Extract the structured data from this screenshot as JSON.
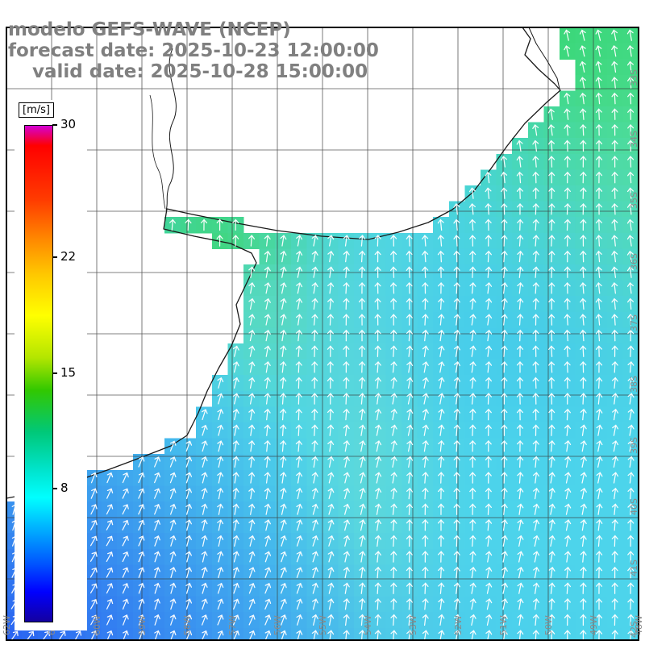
{
  "title": {
    "model": "modelo GEFS-WAVE (NCEP)",
    "forecast_date": "forecast date: 2025-10-23 12:00:00",
    "valid_date": "valid date: 2025-10-28 15:00:00",
    "color": "#808080"
  },
  "colorbar": {
    "unit": "[m/s]",
    "max": 30,
    "min": 0,
    "tick_labels": [
      "30",
      "22",
      "15",
      "8"
    ],
    "tick_values": [
      30,
      22,
      15,
      8
    ],
    "stops": [
      {
        "value": 30,
        "color": "#d400d4"
      },
      {
        "value": 28.8,
        "color": "#ff0000"
      },
      {
        "value": 25.5,
        "color": "#ff3c00"
      },
      {
        "value": 23,
        "color": "#ff8c00"
      },
      {
        "value": 21,
        "color": "#ffc800"
      },
      {
        "value": 18.5,
        "color": "#ffff00"
      },
      {
        "value": 16,
        "color": "#b4e600"
      },
      {
        "value": 14,
        "color": "#32c800"
      },
      {
        "value": 11.5,
        "color": "#00c878"
      },
      {
        "value": 9,
        "color": "#00e6d2"
      },
      {
        "value": 7.5,
        "color": "#00ffff"
      },
      {
        "value": 5.5,
        "color": "#00aaff"
      },
      {
        "value": 3.5,
        "color": "#0055ff"
      },
      {
        "value": 1.8,
        "color": "#0000ff"
      },
      {
        "value": 0,
        "color": "#1400a0"
      }
    ]
  },
  "map": {
    "lon_labels": [
      "62W",
      "61W",
      "60W",
      "59W",
      "58W",
      "57W",
      "56W",
      "55W",
      "54W",
      "53W",
      "52W",
      "51W",
      "50W",
      "49W",
      "48W"
    ],
    "lat_labels": [
      "33S",
      "34S",
      "35S",
      "36S",
      "37S",
      "38S",
      "39S",
      "40S",
      "41S",
      "42S"
    ],
    "frame_color": "#000000",
    "land_color": "#ffffff",
    "ocean_base_color": "#4dd5eb",
    "grid_color": "#3a3a3a",
    "coastline_color": "#1a1a1a",
    "arrow_color": "#ffffff",
    "axis_label_color": "#8a8a8a"
  }
}
